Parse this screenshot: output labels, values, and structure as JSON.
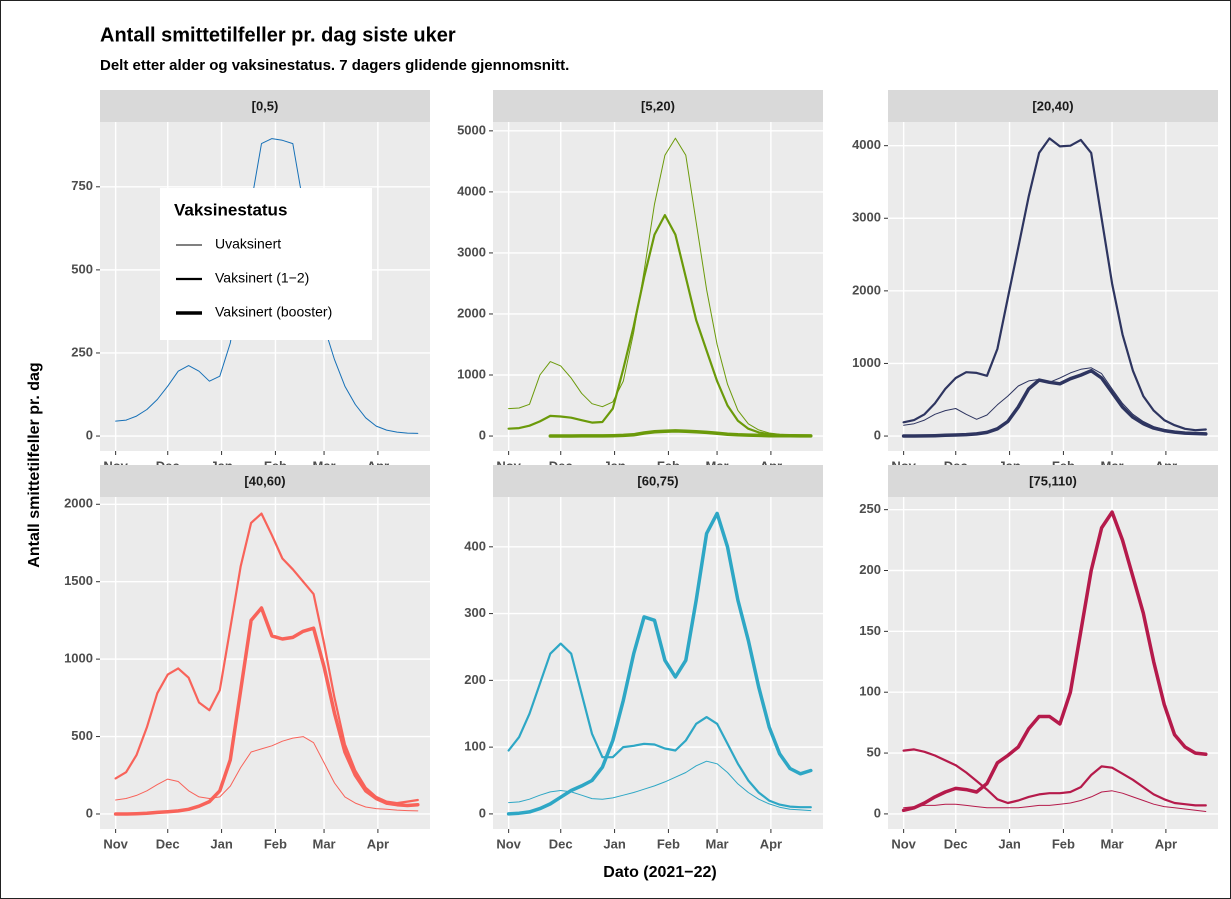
{
  "title": "Antall smittetilfeller pr. dag siste uker",
  "subtitle": "Delt etter alder og vaksinestatus. 7 dagers glidende gjennomsnitt.",
  "ylabel": "Antall smittetilfeller pr. dag",
  "xlabel": "Dato (2021−22)",
  "legend_title": "Vaksinestatus",
  "chart_data": [
    {
      "type": "line",
      "title": "[0,5)",
      "x": [
        0,
        6,
        12,
        18,
        24,
        30,
        36,
        42,
        48,
        54,
        60,
        66,
        72,
        78,
        84,
        90,
        96,
        102,
        108,
        114,
        120,
        126,
        132,
        138,
        144,
        150,
        156,
        162,
        168,
        174
      ],
      "xlim": [
        -9,
        181
      ],
      "xticks": [
        {
          "value": 0,
          "label": "Nov"
        },
        {
          "value": 30,
          "label": "Dec"
        },
        {
          "value": 61,
          "label": "Jan"
        },
        {
          "value": 92,
          "label": "Feb"
        },
        {
          "value": 120,
          "label": "Mar"
        },
        {
          "value": 151,
          "label": "Apr"
        }
      ],
      "ylim": [
        -45,
        945
      ],
      "yticks": [
        0,
        250,
        500,
        750
      ],
      "grid": true,
      "series": [
        {
          "name": "Uvaksinert",
          "color": "#1670b7",
          "line_width": 1,
          "values": [
            45,
            48,
            60,
            80,
            110,
            150,
            195,
            212,
            195,
            165,
            180,
            280,
            470,
            700,
            880,
            895,
            890,
            880,
            700,
            480,
            330,
            230,
            150,
            95,
            55,
            30,
            18,
            12,
            9,
            8
          ]
        }
      ]
    },
    {
      "type": "line",
      "title": "[5,20)",
      "x": [
        0,
        6,
        12,
        18,
        24,
        30,
        36,
        42,
        48,
        54,
        60,
        66,
        72,
        78,
        84,
        90,
        96,
        102,
        108,
        114,
        120,
        126,
        132,
        138,
        144,
        150,
        156,
        162,
        168,
        174
      ],
      "xlim": [
        -9,
        181
      ],
      "xticks": [
        {
          "value": 0,
          "label": "Nov"
        },
        {
          "value": 30,
          "label": "Dec"
        },
        {
          "value": 61,
          "label": "Jan"
        },
        {
          "value": 92,
          "label": "Feb"
        },
        {
          "value": 120,
          "label": "Mar"
        },
        {
          "value": 151,
          "label": "Apr"
        }
      ],
      "ylim": [
        -245,
        5145
      ],
      "yticks": [
        0,
        1000,
        2000,
        3000,
        4000,
        5000
      ],
      "grid": true,
      "series": [
        {
          "name": "Uvaksinert",
          "color": "#6b9a0a",
          "line_width": 1,
          "values": [
            450,
            460,
            520,
            1000,
            1220,
            1150,
            950,
            700,
            530,
            480,
            560,
            900,
            1700,
            2700,
            3800,
            4600,
            4880,
            4600,
            3500,
            2400,
            1500,
            850,
            420,
            200,
            100,
            50,
            30,
            20,
            15,
            10
          ]
        },
        {
          "name": "Vaksinert (1−2)",
          "color": "#6b9a0a",
          "line_width": 2.2,
          "values": [
            120,
            130,
            170,
            240,
            330,
            320,
            300,
            260,
            220,
            230,
            450,
            1100,
            1800,
            2600,
            3300,
            3620,
            3300,
            2600,
            1900,
            1400,
            900,
            500,
            250,
            120,
            60,
            30,
            20,
            15,
            10,
            8
          ]
        },
        {
          "name": "Vaksinert (booster)",
          "color": "#6b9a0a",
          "line_width": 3.5,
          "values": [
            null,
            null,
            null,
            null,
            0,
            1,
            1,
            2,
            2,
            3,
            5,
            10,
            20,
            50,
            70,
            80,
            85,
            80,
            70,
            60,
            45,
            30,
            20,
            15,
            10,
            6,
            5,
            4,
            3,
            3
          ]
        }
      ]
    },
    {
      "type": "line",
      "title": "[20,40)",
      "x": [
        0,
        6,
        12,
        18,
        24,
        30,
        36,
        42,
        48,
        54,
        60,
        66,
        72,
        78,
        84,
        90,
        96,
        102,
        108,
        114,
        120,
        126,
        132,
        138,
        144,
        150,
        156,
        162,
        168,
        174
      ],
      "xlim": [
        -9,
        181
      ],
      "xticks": [
        {
          "value": 0,
          "label": "Nov"
        },
        {
          "value": 30,
          "label": "Dec"
        },
        {
          "value": 61,
          "label": "Jan"
        },
        {
          "value": 92,
          "label": "Feb"
        },
        {
          "value": 120,
          "label": "Mar"
        },
        {
          "value": 151,
          "label": "Apr"
        }
      ],
      "ylim": [
        -206,
        4326
      ],
      "yticks": [
        0,
        1000,
        2000,
        3000,
        4000
      ],
      "grid": true,
      "series": [
        {
          "name": "Uvaksinert",
          "color": "#2e3560",
          "line_width": 1,
          "values": [
            150,
            170,
            220,
            300,
            350,
            380,
            300,
            230,
            290,
            430,
            550,
            690,
            760,
            780,
            740,
            800,
            870,
            920,
            940,
            860,
            650,
            450,
            300,
            200,
            130,
            90,
            60,
            40,
            30,
            25
          ]
        },
        {
          "name": "Vaksinert (1−2)",
          "color": "#2e3560",
          "line_width": 2.2,
          "values": [
            190,
            220,
            300,
            450,
            650,
            800,
            880,
            870,
            830,
            1200,
            1900,
            2600,
            3300,
            3900,
            4100,
            3990,
            4000,
            4080,
            3900,
            3000,
            2100,
            1400,
            900,
            550,
            350,
            220,
            150,
            100,
            80,
            90
          ]
        },
        {
          "name": "Vaksinert (booster)",
          "color": "#2e3560",
          "line_width": 3.5,
          "values": [
            0,
            0,
            2,
            5,
            10,
            15,
            20,
            30,
            50,
            100,
            200,
            400,
            650,
            770,
            740,
            720,
            790,
            840,
            900,
            800,
            600,
            400,
            260,
            170,
            110,
            75,
            55,
            40,
            35,
            30
          ]
        }
      ]
    },
    {
      "type": "line",
      "title": "[40,60)",
      "x": [
        0,
        6,
        12,
        18,
        24,
        30,
        36,
        42,
        48,
        54,
        60,
        66,
        72,
        78,
        84,
        90,
        96,
        102,
        108,
        114,
        120,
        126,
        132,
        138,
        144,
        150,
        156,
        162,
        168,
        174
      ],
      "xlim": [
        -9,
        181
      ],
      "xticks": [
        {
          "value": 0,
          "label": "Nov"
        },
        {
          "value": 30,
          "label": "Dec"
        },
        {
          "value": 61,
          "label": "Jan"
        },
        {
          "value": 92,
          "label": "Feb"
        },
        {
          "value": 120,
          "label": "Mar"
        },
        {
          "value": 151,
          "label": "Apr"
        }
      ],
      "ylim": [
        -97,
        2047
      ],
      "yticks": [
        0,
        500,
        1000,
        1500,
        2000
      ],
      "grid": true,
      "series": [
        {
          "name": "Uvaksinert",
          "color": "#f8635a",
          "line_width": 1,
          "values": [
            90,
            100,
            120,
            150,
            190,
            225,
            210,
            150,
            110,
            100,
            110,
            180,
            300,
            400,
            420,
            440,
            470,
            490,
            500,
            460,
            330,
            200,
            110,
            70,
            45,
            35,
            30,
            25,
            22,
            20
          ]
        },
        {
          "name": "Vaksinert (1−2)",
          "color": "#f8635a",
          "line_width": 2.2,
          "values": [
            230,
            270,
            380,
            560,
            780,
            900,
            940,
            880,
            720,
            670,
            800,
            1200,
            1600,
            1880,
            1940,
            1800,
            1650,
            1580,
            1500,
            1420,
            1100,
            750,
            450,
            280,
            170,
            110,
            80,
            70,
            80,
            90
          ]
        },
        {
          "name": "Vaksinert (booster)",
          "color": "#f8635a",
          "line_width": 3.5,
          "values": [
            0,
            0,
            2,
            5,
            10,
            15,
            20,
            30,
            50,
            80,
            150,
            350,
            800,
            1250,
            1330,
            1150,
            1130,
            1140,
            1180,
            1200,
            950,
            650,
            400,
            250,
            150,
            100,
            70,
            60,
            55,
            60
          ]
        }
      ]
    },
    {
      "type": "line",
      "title": "[60,75)",
      "x": [
        0,
        6,
        12,
        18,
        24,
        30,
        36,
        42,
        48,
        54,
        60,
        66,
        72,
        78,
        84,
        90,
        96,
        102,
        108,
        114,
        120,
        126,
        132,
        138,
        144,
        150,
        156,
        162,
        168,
        174
      ],
      "xlim": [
        -9,
        181
      ],
      "xticks": [
        {
          "value": 0,
          "label": "Nov"
        },
        {
          "value": 30,
          "label": "Dec"
        },
        {
          "value": 61,
          "label": "Jan"
        },
        {
          "value": 92,
          "label": "Feb"
        },
        {
          "value": 120,
          "label": "Mar"
        },
        {
          "value": 151,
          "label": "Apr"
        }
      ],
      "ylim": [
        -22.6,
        474.6
      ],
      "yticks": [
        0,
        100,
        200,
        300,
        400
      ],
      "grid": true,
      "series": [
        {
          "name": "Uvaksinert",
          "color": "#2ea7c5",
          "line_width": 1,
          "values": [
            17,
            18,
            22,
            28,
            33,
            35,
            33,
            28,
            23,
            22,
            24,
            28,
            32,
            37,
            42,
            48,
            55,
            62,
            72,
            79,
            75,
            62,
            45,
            32,
            22,
            15,
            10,
            7,
            6,
            5
          ]
        },
        {
          "name": "Vaksinert (1−2)",
          "color": "#2ea7c5",
          "line_width": 2.2,
          "values": [
            95,
            115,
            150,
            195,
            240,
            255,
            240,
            180,
            120,
            85,
            85,
            100,
            102,
            105,
            104,
            98,
            95,
            110,
            135,
            145,
            135,
            105,
            75,
            50,
            32,
            20,
            14,
            11,
            10,
            10
          ]
        },
        {
          "name": "Vaksinert (booster)",
          "color": "#2ea7c5",
          "line_width": 3.5,
          "values": [
            0,
            1,
            3,
            8,
            15,
            25,
            35,
            42,
            50,
            70,
            110,
            170,
            240,
            295,
            290,
            230,
            205,
            230,
            320,
            420,
            450,
            400,
            320,
            260,
            190,
            130,
            90,
            68,
            60,
            65
          ]
        }
      ]
    },
    {
      "type": "line",
      "title": "[75,110)",
      "x": [
        0,
        6,
        12,
        18,
        24,
        30,
        36,
        42,
        48,
        54,
        60,
        66,
        72,
        78,
        84,
        90,
        96,
        102,
        108,
        114,
        120,
        126,
        132,
        138,
        144,
        150,
        156,
        162,
        168,
        174
      ],
      "xlim": [
        -9,
        181
      ],
      "xticks": [
        {
          "value": 0,
          "label": "Nov"
        },
        {
          "value": 30,
          "label": "Dec"
        },
        {
          "value": 61,
          "label": "Jan"
        },
        {
          "value": 92,
          "label": "Feb"
        },
        {
          "value": 120,
          "label": "Mar"
        },
        {
          "value": 151,
          "label": "Apr"
        }
      ],
      "ylim": [
        -12.4,
        260.4
      ],
      "yticks": [
        0,
        50,
        100,
        150,
        200,
        250
      ],
      "grid": true,
      "series": [
        {
          "name": "Uvaksinert",
          "color": "#b51a4b",
          "line_width": 1,
          "values": [
            5,
            6,
            7,
            7,
            8,
            8,
            7,
            6,
            5,
            5,
            5,
            5,
            6,
            7,
            7,
            8,
            9,
            11,
            14,
            18,
            19,
            17,
            14,
            11,
            8,
            6,
            5,
            4,
            3,
            2
          ]
        },
        {
          "name": "Vaksinert (1−2)",
          "color": "#b51a4b",
          "line_width": 2.2,
          "values": [
            52,
            53,
            51,
            48,
            44,
            40,
            34,
            27,
            20,
            12,
            9,
            11,
            14,
            16,
            17,
            17,
            18,
            22,
            32,
            39,
            38,
            33,
            28,
            22,
            16,
            12,
            9,
            8,
            7,
            7
          ]
        },
        {
          "name": "Vaksinert (booster)",
          "color": "#b51a4b",
          "line_width": 3.5,
          "values": [
            3,
            5,
            9,
            14,
            18,
            21,
            20,
            18,
            25,
            42,
            48,
            55,
            70,
            80,
            80,
            74,
            100,
            150,
            200,
            235,
            248,
            225,
            195,
            165,
            125,
            90,
            65,
            55,
            50,
            49
          ]
        }
      ]
    }
  ]
}
